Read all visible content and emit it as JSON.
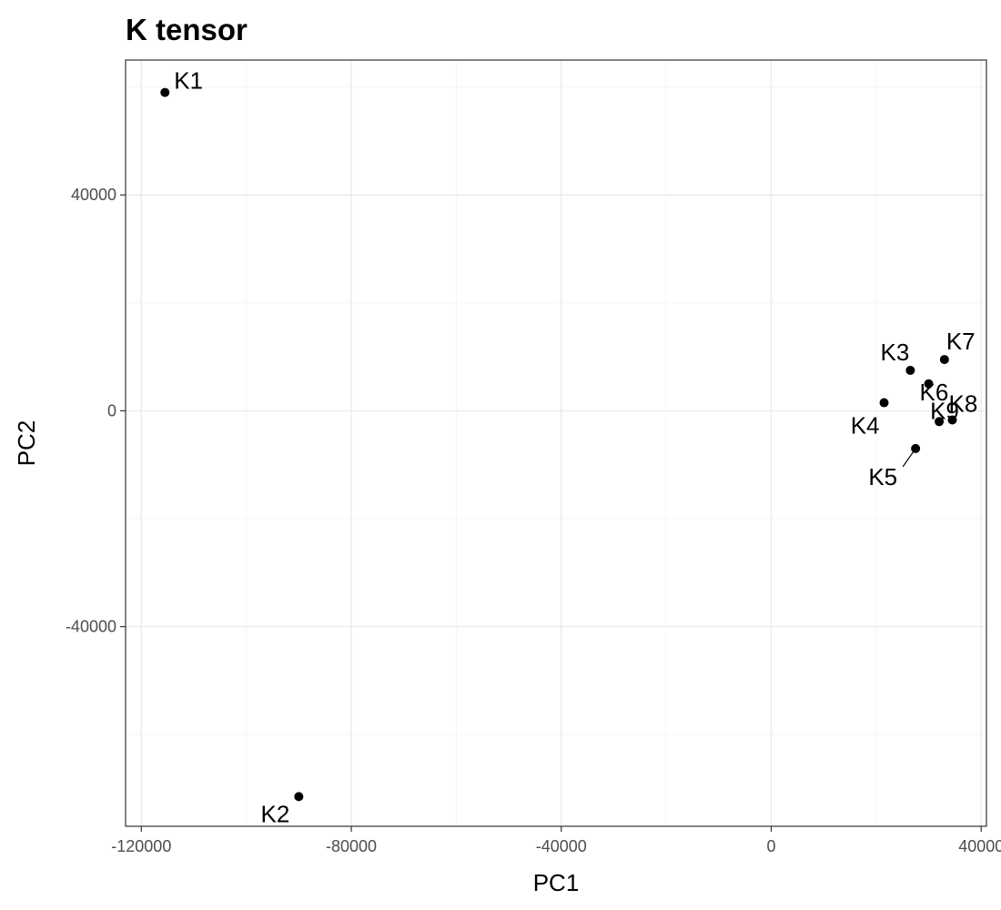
{
  "chart_data": {
    "type": "scatter",
    "title": "K tensor",
    "xlabel": "PC1",
    "ylabel": "PC2",
    "xlim": [
      -123000,
      41000
    ],
    "ylim": [
      -77000,
      65000
    ],
    "xticks": [
      -120000,
      -80000,
      -40000,
      0,
      40000
    ],
    "yticks": [
      -40000,
      0,
      40000
    ],
    "xtick_labels": [
      "-120000",
      "-80000",
      "-40000",
      "0",
      "40000"
    ],
    "ytick_labels": [
      "-40000",
      "0",
      "40000"
    ],
    "grid": true,
    "legend": "none",
    "points": [
      {
        "label": "K1",
        "x": -115500,
        "y": 59000
      },
      {
        "label": "K2",
        "x": -90000,
        "y": -71500
      },
      {
        "label": "K3",
        "x": 26500,
        "y": 7500
      },
      {
        "label": "K4",
        "x": 21500,
        "y": 1500
      },
      {
        "label": "K5",
        "x": 27500,
        "y": -7000
      },
      {
        "label": "K6",
        "x": 30000,
        "y": 5000
      },
      {
        "label": "K7",
        "x": 33000,
        "y": 9500
      },
      {
        "label": "K8",
        "x": 34500,
        "y": -1700
      },
      {
        "label": "K9",
        "x": 32000,
        "y": -2000
      }
    ]
  }
}
